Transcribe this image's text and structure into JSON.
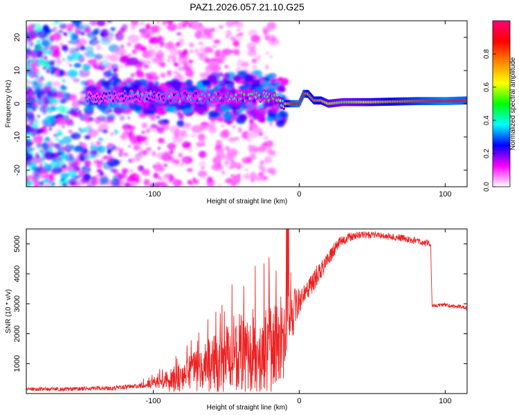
{
  "title": "PAZ1.2026.057.21.10.G25",
  "colors": {
    "line": "#ee2222",
    "axis": "#000000",
    "background": "#ffffff"
  },
  "chart_data": [
    {
      "type": "heatmap",
      "name": "spectrogram",
      "xlabel": "Height of straight line (km)",
      "ylabel": "Frequency (Hz)",
      "xlim": [
        -187,
        115
      ],
      "ylim": [
        -25,
        25
      ],
      "x_ticks": [
        -100,
        0,
        100
      ],
      "y_ticks": [
        -20,
        -10,
        0,
        10,
        20
      ],
      "colorbar": {
        "label": "Normalized spectral amplitude",
        "range": [
          0,
          1
        ],
        "ticks": [
          0.0,
          0.2,
          0.4,
          0.6,
          0.8
        ],
        "tick_labels": [
          "0.0",
          "0.2",
          "0.4",
          "0.6",
          "0.8"
        ],
        "colormap": [
          "#ffffff",
          "#ff00ff",
          "#0000ff",
          "#00ffff",
          "#00ff00",
          "#ffff00",
          "#ff8800",
          "#ff0000",
          "#ff0077"
        ]
      },
      "ridge": {
        "x": [
          -140,
          -100,
          -60,
          -30,
          -20,
          -15,
          -10,
          -5,
          0,
          3,
          6,
          10,
          15,
          20,
          30,
          50,
          80,
          100,
          115
        ],
        "freq_hz": [
          2,
          2,
          2,
          2,
          2,
          1,
          0,
          0,
          0,
          3,
          3,
          1,
          1,
          0,
          0.5,
          0.5,
          0.8,
          0.8,
          1
        ],
        "amplitude": [
          0.25,
          0.3,
          0.35,
          0.4,
          0.4,
          0.45,
          0.6,
          0.85,
          0.9,
          0.85,
          0.7,
          0.75,
          0.7,
          0.6,
          0.55,
          0.65,
          0.8,
          0.9,
          0.85
        ]
      }
    },
    {
      "type": "line",
      "name": "snr",
      "xlabel": "Height of straight line (km)",
      "ylabel": "SNR (10 * v/v)",
      "xlim": [
        -187,
        115
      ],
      "ylim": [
        0,
        5500
      ],
      "x_ticks": [
        -100,
        0,
        100
      ],
      "y_ticks": [
        1000,
        2000,
        3000,
        4000,
        5000
      ],
      "envelope": {
        "x": [
          -187,
          -160,
          -130,
          -110,
          -100,
          -90,
          -80,
          -70,
          -60,
          -50,
          -40,
          -30,
          -25,
          -20,
          -15,
          -10,
          -8,
          -5,
          0,
          5,
          10,
          15,
          20,
          25,
          30,
          40,
          50,
          60,
          70,
          80,
          90,
          91,
          100,
          110,
          115
        ],
        "y": [
          150,
          150,
          180,
          250,
          350,
          450,
          600,
          800,
          1000,
          1200,
          1300,
          1400,
          1500,
          1600,
          1800,
          2000,
          2400,
          2700,
          3100,
          3400,
          3800,
          4100,
          4500,
          4900,
          5150,
          5300,
          5300,
          5250,
          5200,
          5100,
          5000,
          2950,
          2950,
          2900,
          2850
        ]
      },
      "spread": {
        "x": [
          -187,
          -110,
          -100,
          -80,
          -60,
          -40,
          -20,
          -10,
          0,
          20,
          40,
          90,
          91,
          115
        ],
        "y": [
          60,
          80,
          150,
          500,
          900,
          1200,
          1500,
          1300,
          500,
          250,
          120,
          120,
          70,
          70
        ]
      }
    }
  ]
}
